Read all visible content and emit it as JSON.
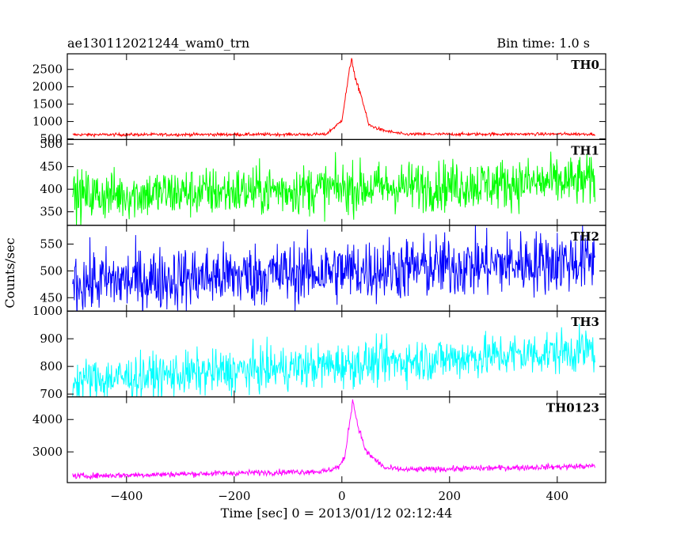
{
  "header": {
    "left_title": "ae130112021244_wam0_trn",
    "right_title": "Bin time: 1.0 s"
  },
  "chart_data": {
    "type": "line",
    "title": "ae130112021244_wam0_trn",
    "bin_time": "Bin time: 1.0 s",
    "xlabel": "Time [sec] 0 = 2013/01/12 02:12:44",
    "ylabel": "Counts/sec",
    "xlim": [
      -510,
      490
    ],
    "x_ticks": [
      -400,
      -200,
      0,
      200,
      400
    ],
    "x_start": -500,
    "x_end": 470,
    "grid": false,
    "panels": [
      {
        "name": "TH0",
        "color": "#ff0000",
        "ylim": [
          480,
          2950
        ],
        "y_ticks": [
          500,
          1000,
          1500,
          2000,
          2500
        ],
        "baseline": [
          [
            -500,
            620
          ],
          [
            470,
            640
          ]
        ],
        "noise": 22,
        "features": [
          {
            "x": -5,
            "value": 950
          },
          {
            "x": 0,
            "value": 1050
          },
          {
            "x": 18,
            "value": 2850
          },
          {
            "x": 25,
            "value": 2200
          },
          {
            "x": 35,
            "value": 1800
          },
          {
            "x": 50,
            "value": 900
          },
          {
            "x": 75,
            "value": 750
          }
        ]
      },
      {
        "name": "TH1",
        "color": "#00ff00",
        "ylim": [
          320,
          510
        ],
        "y_ticks": [
          350,
          400,
          450,
          500
        ],
        "baseline": [
          [
            -500,
            385
          ],
          [
            470,
            418
          ]
        ],
        "noise": 28,
        "features": []
      },
      {
        "name": "TH2",
        "color": "#0000ff",
        "ylim": [
          425,
          585
        ],
        "y_ticks": [
          450,
          500,
          550
        ],
        "baseline": [
          [
            -500,
            478
          ],
          [
            470,
            520
          ]
        ],
        "noise": 30,
        "features": []
      },
      {
        "name": "TH3",
        "color": "#00ffff",
        "ylim": [
          690,
          1000
        ],
        "y_ticks": [
          700,
          800,
          900,
          1000
        ],
        "baseline": [
          [
            -500,
            748
          ],
          [
            470,
            860
          ]
        ],
        "noise": 40,
        "features": []
      },
      {
        "name": "TH0123",
        "color": "#ff00ff",
        "ylim": [
          2050,
          4700
        ],
        "y_ticks": [
          3000,
          4000
        ],
        "baseline": [
          [
            -500,
            2250
          ],
          [
            470,
            2560
          ]
        ],
        "noise": 45,
        "features": [
          {
            "x": -5,
            "value": 2550
          },
          {
            "x": 5,
            "value": 2800
          },
          {
            "x": 20,
            "value": 4600
          },
          {
            "x": 30,
            "value": 3800
          },
          {
            "x": 45,
            "value": 3000
          },
          {
            "x": 80,
            "value": 2500
          }
        ]
      }
    ]
  }
}
